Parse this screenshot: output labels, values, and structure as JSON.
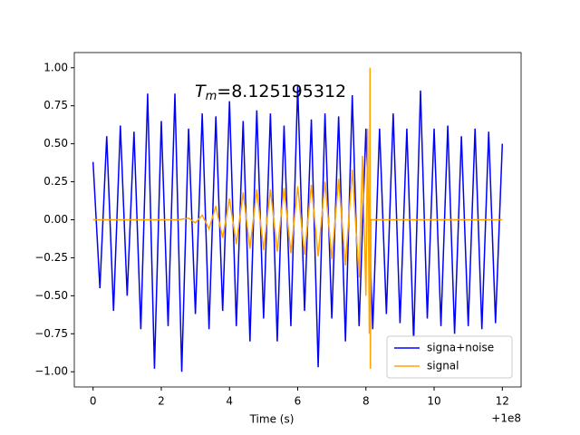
{
  "chart_data": {
    "type": "line",
    "annotation": {
      "symbol": "T",
      "subscript": "m",
      "text": "=8.125195312"
    },
    "x_label": "Time (s)",
    "x_offset_label": "+1e8",
    "series": [
      {
        "name": "signa+noise",
        "color": "#0000ff",
        "x": [
          0,
          0.2,
          0.4,
          0.6,
          0.8,
          1.0,
          1.2,
          1.4,
          1.6,
          1.8,
          2.0,
          2.2,
          2.4,
          2.6,
          2.8,
          3.0,
          3.2,
          3.4,
          3.6,
          3.8,
          4.0,
          4.2,
          4.4,
          4.6,
          4.8,
          5.0,
          5.2,
          5.4,
          5.6,
          5.8,
          6.0,
          6.2,
          6.4,
          6.6,
          6.8,
          7.0,
          7.2,
          7.4,
          7.6,
          7.8,
          8.0,
          8.2,
          8.4,
          8.6,
          8.8,
          9.0,
          9.2,
          9.4,
          9.6,
          9.8,
          10.0,
          10.2,
          10.4,
          10.6,
          10.8,
          11.0,
          11.2,
          11.4,
          11.6,
          11.8,
          12.0
        ],
        "values": [
          0.38,
          -0.45,
          0.55,
          -0.6,
          0.62,
          -0.5,
          0.58,
          -0.72,
          0.83,
          -0.98,
          0.65,
          -0.7,
          0.83,
          -1.0,
          0.6,
          -0.62,
          0.7,
          -0.72,
          0.68,
          -0.6,
          0.78,
          -0.7,
          0.65,
          -0.8,
          0.72,
          -0.65,
          0.7,
          -0.8,
          0.62,
          -0.7,
          0.88,
          -0.6,
          0.66,
          -0.97,
          0.7,
          -0.65,
          0.68,
          -0.8,
          0.82,
          -0.7,
          0.6,
          -0.72,
          0.6,
          -0.62,
          0.7,
          -0.68,
          0.6,
          -0.8,
          0.85,
          -0.65,
          0.6,
          -0.7,
          0.62,
          -0.75,
          0.55,
          -0.7,
          0.6,
          -0.72,
          0.58,
          -0.68,
          0.5
        ]
      },
      {
        "name": "signal",
        "color": "#ffa500",
        "x": [
          0,
          2.5,
          2.8,
          3.0,
          3.2,
          3.4,
          3.6,
          3.8,
          4.0,
          4.2,
          4.4,
          4.6,
          4.8,
          5.0,
          5.2,
          5.4,
          5.6,
          5.8,
          6.0,
          6.2,
          6.4,
          6.6,
          6.8,
          7.0,
          7.2,
          7.4,
          7.6,
          7.8,
          7.9,
          8.0,
          8.05,
          8.1,
          8.12,
          8.13,
          8.15,
          12
        ],
        "values": [
          0,
          0,
          0.01,
          -0.02,
          0.03,
          -0.06,
          0.09,
          -0.12,
          0.14,
          -0.16,
          0.18,
          -0.19,
          0.2,
          -0.2,
          0.2,
          -0.21,
          0.21,
          -0.22,
          0.22,
          -0.23,
          0.23,
          -0.24,
          0.25,
          -0.26,
          0.27,
          -0.3,
          0.33,
          -0.38,
          0.42,
          -0.5,
          0.6,
          -0.75,
          1.0,
          -0.98,
          0,
          0
        ]
      }
    ],
    "xlim": [
      -0.55,
      12.55
    ],
    "xticks": [
      0,
      2,
      4,
      6,
      8,
      10,
      12
    ],
    "ylim": [
      -1.1,
      1.1
    ],
    "yticks": [
      {
        "value": -1,
        "label": "−1.00"
      },
      {
        "value": -0.75,
        "label": "−0.75"
      },
      {
        "value": -0.5,
        "label": "−0.50"
      },
      {
        "value": -0.25,
        "label": "−0.25"
      },
      {
        "value": 0,
        "label": "0.00"
      },
      {
        "value": 0.25,
        "label": "0.25"
      },
      {
        "value": 0.5,
        "label": "0.50"
      },
      {
        "value": 0.75,
        "label": "0.75"
      },
      {
        "value": 1,
        "label": "1.00"
      }
    ],
    "legend": "lower right"
  }
}
